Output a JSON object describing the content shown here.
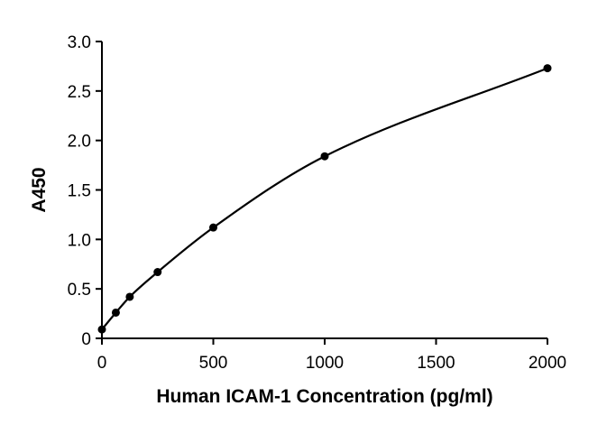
{
  "chart_data": {
    "type": "scatter",
    "title": "",
    "xlabel": "Human ICAM-1 Concentration (pg/ml)",
    "ylabel": "A450",
    "xlim": [
      0,
      2000
    ],
    "ylim": [
      0,
      3.0
    ],
    "x_ticks": [
      0,
      500,
      1000,
      1500,
      2000
    ],
    "x_tick_labels": [
      "0",
      "500",
      "1000",
      "1500",
      "2000"
    ],
    "y_ticks": [
      0,
      0.5,
      1.0,
      1.5,
      2.0,
      2.5,
      3.0
    ],
    "y_tick_labels": [
      "0",
      "0.5",
      "1.0",
      "1.5",
      "2.0",
      "2.5",
      "3.0"
    ],
    "grid": false,
    "legend": "none",
    "fit_curve": true,
    "series": [
      {
        "x": [
          0,
          62.5,
          125,
          250,
          500,
          1000,
          2000
        ],
        "y": [
          0.09,
          0.26,
          0.42,
          0.67,
          1.12,
          1.84,
          2.73
        ],
        "color": "#000000"
      }
    ]
  }
}
